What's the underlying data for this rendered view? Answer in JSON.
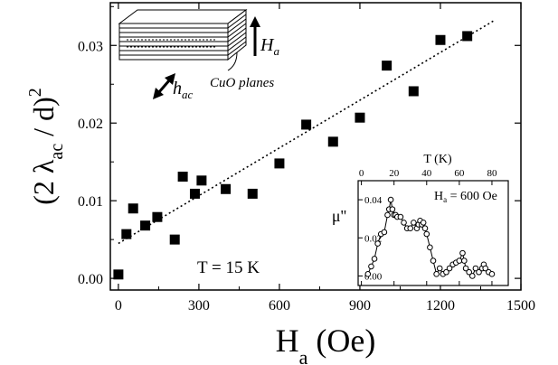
{
  "chart_data": [
    {
      "type": "scatter",
      "ylabel": "(2 λac / d)2",
      "ylabel_parts": {
        "open": "(2 λ",
        "sub": "ac",
        "rest": " / d)",
        "sup": "2"
      },
      "xlabel": "Ha (Oe)",
      "xlabel_parts": {
        "main": "H",
        "sub": "a",
        "rest": " (Oe)"
      },
      "xlim": [
        -30,
        1500
      ],
      "ylim": [
        -0.0015,
        0.0355
      ],
      "xticks": [
        0,
        300,
        600,
        900,
        1200,
        1500
      ],
      "xtick_labels": [
        "0",
        "300",
        "600",
        "900",
        "1200",
        "1500"
      ],
      "yticks": [
        0.0,
        0.01,
        0.02,
        0.03
      ],
      "ytick_labels": [
        "0.00",
        "0.01",
        "0.02",
        "0.03"
      ],
      "annotation": "T = 15 K",
      "series": [
        {
          "marker": "filled-square",
          "color": "#000000",
          "points": [
            [
              0,
              0.0005
            ],
            [
              30,
              0.0057
            ],
            [
              55,
              0.009
            ],
            [
              100,
              0.0068
            ],
            [
              145,
              0.0079
            ],
            [
              210,
              0.005
            ],
            [
              240,
              0.0131
            ],
            [
              285,
              0.0109
            ],
            [
              310,
              0.0126
            ],
            [
              400,
              0.0115
            ],
            [
              500,
              0.0109
            ],
            [
              600,
              0.0148
            ],
            [
              700,
              0.0198
            ],
            [
              800,
              0.0176
            ],
            [
              900,
              0.0207
            ],
            [
              1000,
              0.0274
            ],
            [
              1100,
              0.0241
            ],
            [
              1200,
              0.0307
            ],
            [
              1300,
              0.0312
            ]
          ]
        }
      ],
      "fit_line": {
        "style": "dotted",
        "x": [
          0,
          1400
        ],
        "y": [
          0.0045,
          0.0332
        ]
      },
      "grid": false
    },
    {
      "type": "line",
      "xlabel": "T (K)",
      "ylabel": "μ''",
      "legend_text": "Ha = 600 Oe",
      "legend_parts": {
        "main": "H",
        "sub": "a",
        "rest": " = 600 Oe"
      },
      "xlim": [
        -2,
        90
      ],
      "ylim": [
        -0.005,
        0.05
      ],
      "xticks": [
        0,
        20,
        40,
        60,
        80
      ],
      "xtick_labels": [
        "0",
        "20",
        "40",
        "60",
        "80"
      ],
      "yticks": [
        0.0,
        0.02,
        0.04
      ],
      "ytick_labels": [
        "0.00",
        "0.02",
        "0.04"
      ],
      "series": [
        {
          "marker": "open-circle",
          "x": [
            4,
            6,
            8,
            10,
            12,
            14,
            16,
            17,
            18,
            19,
            20,
            21,
            22,
            24,
            26,
            28,
            30,
            32,
            34,
            35,
            36,
            37,
            38,
            39,
            40,
            42,
            44,
            46,
            48,
            50,
            52,
            54,
            56,
            58,
            60,
            62,
            63,
            64,
            66,
            68,
            70,
            72,
            74,
            75,
            76,
            78,
            80
          ],
          "y": [
            0.001,
            0.005,
            0.009,
            0.017,
            0.022,
            0.023,
            0.032,
            0.035,
            0.04,
            0.035,
            0.032,
            0.032,
            0.031,
            0.031,
            0.028,
            0.025,
            0.025,
            0.028,
            0.025,
            0.027,
            0.029,
            0.027,
            0.028,
            0.025,
            0.022,
            0.015,
            0.008,
            0.001,
            0.004,
            0.001,
            0.002,
            0.004,
            0.006,
            0.007,
            0.008,
            0.012,
            0.008,
            0.004,
            0.002,
            0.0,
            0.004,
            0.002,
            0.004,
            0.006,
            0.004,
            0.002,
            0.001
          ]
        }
      ]
    }
  ],
  "schematic": {
    "field_label": {
      "main": "H",
      "sub": "a"
    },
    "ac_label": {
      "main": "h",
      "sub": "ac"
    },
    "planes_label": "CuO planes"
  }
}
